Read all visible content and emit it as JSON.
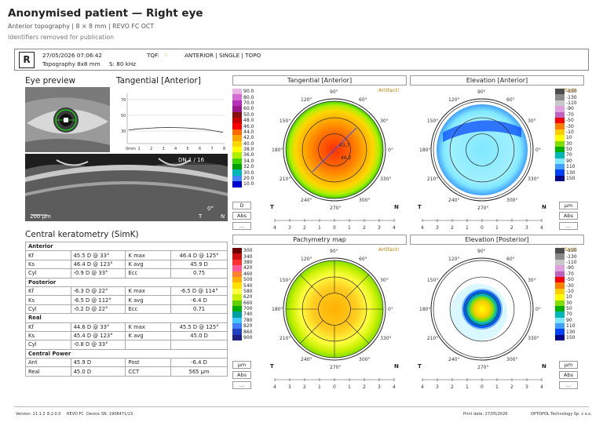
{
  "header": {
    "title": "Anonymised patient — Right eye",
    "subtitle": "Anterior topography | 8 × 8 mm | REVO FC OCT",
    "note": "Identifiers removed for publication"
  },
  "exam": {
    "eye": "R",
    "datetime": "27/05/2026 07:06:42",
    "tqf_label": "TQF:",
    "tqf_icon": "star-icon",
    "mode": "ANTERIOR | SINGLE | TOPO",
    "protocol": "Topography 8x8 mm",
    "speed": "S: 80 kHz"
  },
  "sections": {
    "eye_preview": "Eye preview",
    "tangential_profile": "Tangential [Anterior]",
    "central_keratometry": "Central keratometry (SimK)"
  },
  "oct": {
    "frame": "DN  1 / 16",
    "scale": "200 µm",
    "angle": "0°",
    "t": "T",
    "n": "N"
  },
  "profile": {
    "y_ticks": [
      "70",
      "50",
      "30"
    ],
    "x_ticks": [
      "0mm",
      "1",
      "2",
      "3",
      "4",
      "5",
      "6",
      "7",
      "8"
    ],
    "values": [
      43.5,
      44.6,
      45.2,
      45.8,
      46.0,
      45.9,
      45.6,
      45.0,
      44.3,
      42.8,
      41.2
    ]
  },
  "keratometry": {
    "groups": [
      {
        "name": "Anterior",
        "rows": [
          {
            "l1": "Kf",
            "v1": "45.5 D  @ 33°",
            "l2": "K max",
            "v2": "46.4 D  @ 125°"
          },
          {
            "l1": "Ks",
            "v1": "46.4 D  @ 123°",
            "l2": "K avg",
            "v2": "45.9 D"
          },
          {
            "l1": "Cyl",
            "v1": "-0.9 D  @ 33°",
            "l2": "Ecc",
            "v2": "0.75"
          }
        ]
      },
      {
        "name": "Posterior",
        "rows": [
          {
            "l1": "Kf",
            "v1": "-6.3 D  @ 22°",
            "l2": "K max",
            "v2": "-6.5 D  @ 114°"
          },
          {
            "l1": "Ks",
            "v1": "-6.5 D  @ 112°",
            "l2": "K avg",
            "v2": "-6.4 D"
          },
          {
            "l1": "Cyl",
            "v1": "-0.2 D  @ 22°",
            "l2": "Ecc",
            "v2": "0.71"
          }
        ]
      },
      {
        "name": "Real",
        "rows": [
          {
            "l1": "Kf",
            "v1": "44.6 D  @ 33°",
            "l2": "K max",
            "v2": "45.5 D  @ 125°"
          },
          {
            "l1": "Ks",
            "v1": "45.4 D  @ 123°",
            "l2": "K avg",
            "v2": "45.0 D"
          },
          {
            "l1": "Cyl",
            "v1": "-0.8 D  @ 33°",
            "l2": "",
            "v2": ""
          }
        ]
      },
      {
        "name": "Central Power",
        "rows": [
          {
            "l1": "Ant",
            "v1": "45.9 D",
            "l2": "Post",
            "v2": "-6.4 D"
          },
          {
            "l1": "Real",
            "v1": "45.0 D",
            "l2": "CCT",
            "v2": "565 µm"
          }
        ]
      }
    ]
  },
  "maps": {
    "tangential": {
      "title": "Tangential [Anterior]",
      "artifact": "Artifact!",
      "scale": [
        "90.0",
        "80.0",
        "70.0",
        "60.0",
        "50.0",
        "48.0",
        "46.0",
        "44.0",
        "42.0",
        "40.0",
        "38.0",
        "36.0",
        "34.0",
        "32.0",
        "30.0",
        "20.0",
        "10.0"
      ],
      "colors": [
        "#e9b4e6",
        "#d56ad2",
        "#b82fb8",
        "#9a1a8e",
        "#8a1010",
        "#c80000",
        "#ff0000",
        "#ff6a00",
        "#ffa500",
        "#ffd700",
        "#ffff00",
        "#aef000",
        "#3fd100",
        "#00a000",
        "#00b8b8",
        "#4488ff",
        "#0000cc"
      ],
      "buttons": {
        "d": "D",
        "abs": "Abs",
        "more": "..."
      },
      "labels": {
        "k1": "43.7",
        "k2": "46.2"
      }
    },
    "elevation_anterior": {
      "title": "Elevation [Anterior]",
      "artifact": "Artifact!",
      "scale": [
        "-150",
        "-130",
        "-110",
        "-90",
        "-70",
        "-50",
        "-30",
        "-10",
        "10",
        "30",
        "50",
        "70",
        "90",
        "110",
        "130",
        "150"
      ],
      "colors": [
        "#4d4d4d",
        "#8a8a8a",
        "#c8c8c8",
        "#e0a0e0",
        "#c060c0",
        "#ff0000",
        "#ff8000",
        "#ffcc00",
        "#ffff00",
        "#80e000",
        "#00b000",
        "#00b8b8",
        "#80e8ff",
        "#40a0ff",
        "#0040ff",
        "#00008b"
      ],
      "buttons": {
        "unit": "µm",
        "abs": "Abs",
        "more": "..."
      }
    },
    "pachymetry": {
      "title": "Pachymetry map",
      "artifact": "Artifact!",
      "scale": [
        "300",
        "340",
        "380",
        "420",
        "460",
        "500",
        "540",
        "580",
        "620",
        "660",
        "700",
        "740",
        "780",
        "820",
        "860",
        "900"
      ],
      "colors": [
        "#6a0000",
        "#d01010",
        "#ff3030",
        "#ff5a9a",
        "#ff8030",
        "#ffb000",
        "#ffe000",
        "#ffff40",
        "#c8f000",
        "#60d000",
        "#00b000",
        "#00a0a0",
        "#40c8ff",
        "#4080ff",
        "#2040c0",
        "#202080"
      ],
      "buttons": {
        "unit": "µm",
        "abs": "Abs",
        "more": "..."
      }
    },
    "elevation_posterior": {
      "title": "Elevation [Posterior]",
      "artifact": "Artifact!",
      "scale": [
        "-150",
        "-130",
        "-110",
        "-90",
        "-70",
        "-50",
        "-30",
        "-10",
        "10",
        "30",
        "50",
        "70",
        "90",
        "110",
        "130",
        "150"
      ],
      "colors": [
        "#4d4d4d",
        "#8a8a8a",
        "#c8c8c8",
        "#e0a0e0",
        "#c060c0",
        "#ff0000",
        "#ff8000",
        "#ffcc00",
        "#ffff00",
        "#80e000",
        "#00b000",
        "#00b8b8",
        "#80e8ff",
        "#40a0ff",
        "#0040ff",
        "#00008b"
      ],
      "buttons": {
        "unit": "µm",
        "abs": "Abs",
        "more": "..."
      }
    },
    "angles": [
      "90°",
      "60°",
      "30°",
      "0°",
      "330°",
      "300°",
      "270°",
      "240°",
      "210°",
      "180°",
      "150°",
      "120°"
    ],
    "axis_ticks": [
      "4",
      "3",
      "2",
      "1",
      "0",
      "1",
      "2",
      "3",
      "4"
    ],
    "t": "T",
    "n": "N"
  },
  "footer": {
    "version": "Version: 21.1.2",
    "build": "8.2.0.0",
    "model": "REVO FC",
    "device": "Device SN: 1908471/23",
    "print_date": "Print date: 27/05/2026",
    "company": "OPTOPOL Technology Sp. z o.o."
  }
}
